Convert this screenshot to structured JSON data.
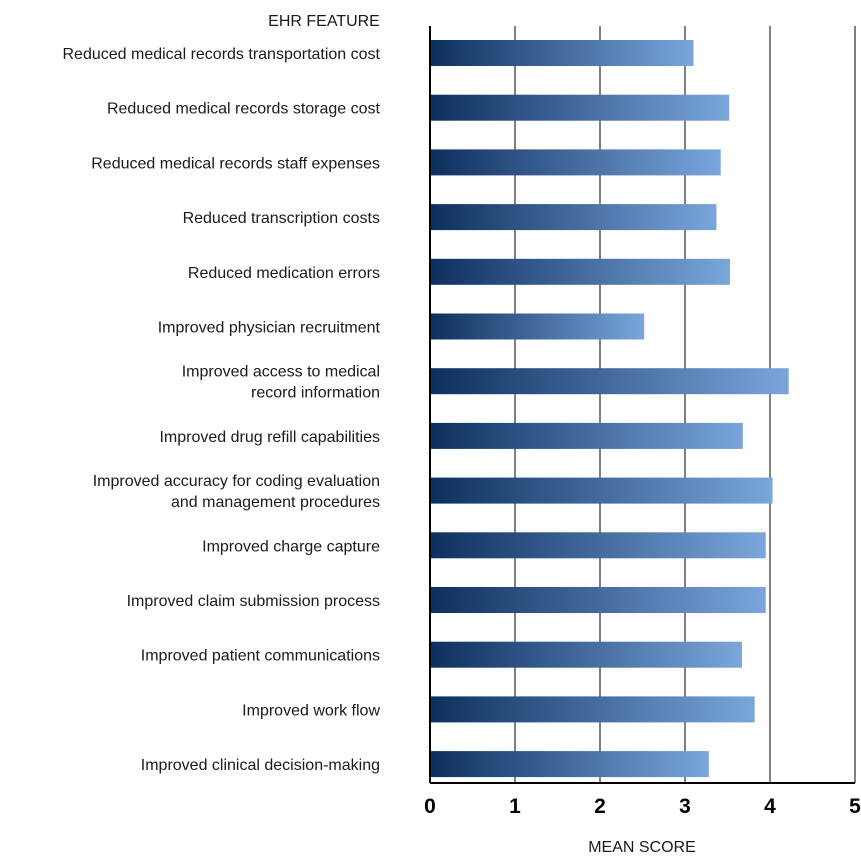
{
  "chart_data": {
    "type": "bar",
    "orientation": "horizontal",
    "category_axis_title": "EHR FEATURE",
    "value_axis_title": "MEAN SCORE",
    "categories": [
      [
        "Reduced medical records transportation cost"
      ],
      [
        "Reduced medical records storage cost"
      ],
      [
        "Reduced medical records staff expenses"
      ],
      [
        "Reduced transcription costs"
      ],
      [
        "Reduced medication errors"
      ],
      [
        "Improved physician recruitment"
      ],
      [
        "Improved access to medical",
        "record information"
      ],
      [
        "Improved drug refill capabilities"
      ],
      [
        "Improved accuracy for coding evaluation",
        "and management procedures"
      ],
      [
        "Improved charge capture"
      ],
      [
        "Improved claim submission process"
      ],
      [
        "Improved patient communications"
      ],
      [
        "Improved work flow"
      ],
      [
        "Improved clinical decision-making"
      ]
    ],
    "values": [
      3.1,
      3.52,
      3.42,
      3.37,
      3.53,
      2.52,
      4.22,
      3.68,
      4.03,
      3.95,
      3.95,
      3.67,
      3.82,
      3.28
    ],
    "xlim": [
      0,
      5
    ],
    "ticks": [
      "0",
      "1",
      "2",
      "3",
      "4",
      "5"
    ],
    "grid": true,
    "legend": "none",
    "bar_gradient": [
      "#0d2f5e",
      "#7aa6dc"
    ],
    "axis_color": "#000000",
    "label_color": "#1a1a1a"
  }
}
